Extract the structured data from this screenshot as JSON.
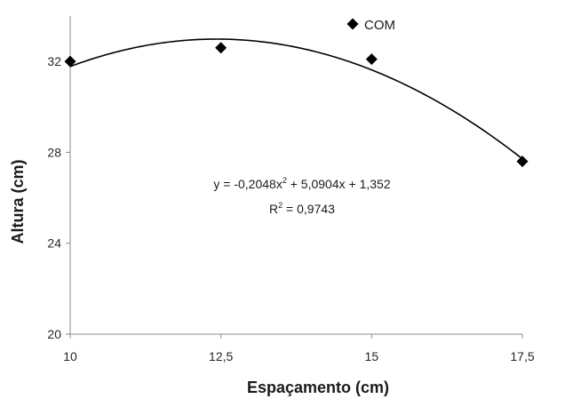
{
  "chart_data": {
    "type": "scatter",
    "xlabel": "Espaçamento (cm)",
    "ylabel": "Altura (cm)",
    "xlim": [
      10,
      17.5
    ],
    "ylim": [
      20,
      34
    ],
    "x_ticks": [
      "10",
      "12,5",
      "15",
      "17,5"
    ],
    "x_tick_values": [
      10,
      12.5,
      15,
      17.5
    ],
    "y_ticks": [
      "20",
      "24",
      "28",
      "32"
    ],
    "y_tick_values": [
      20,
      24,
      28,
      32
    ],
    "grid": false,
    "legend_position": "top-right",
    "series": [
      {
        "name": "COM",
        "marker": "diamond",
        "color": "#000000",
        "x": [
          10,
          12.5,
          15,
          17.5
        ],
        "y": [
          32.0,
          32.6,
          32.1,
          27.6
        ]
      }
    ],
    "trendline": {
      "type": "polynomial",
      "order": 2,
      "coefficients": [
        -0.2048,
        5.0904,
        1.352
      ],
      "color": "#000000",
      "equation_parts": [
        "y = -0,2048x",
        "2",
        " + 5,0904x + 1,352"
      ],
      "r2_parts": [
        "R",
        "2",
        " = 0,9743"
      ]
    }
  }
}
